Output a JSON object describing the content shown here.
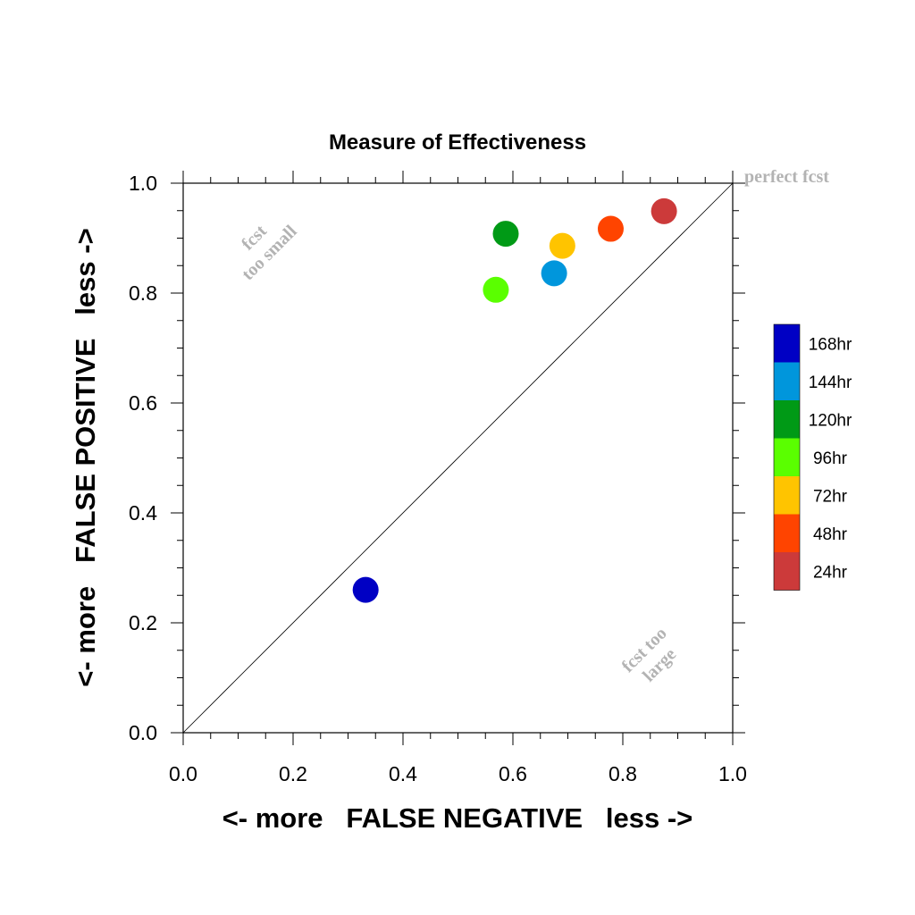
{
  "chart_data": {
    "type": "scatter",
    "title": "Measure of Effectiveness",
    "xlabel": "<- more   FALSE NEGATIVE   less ->",
    "ylabel": "<- more   FALSE POSITIVE   less ->",
    "xlim": [
      0.0,
      1.0
    ],
    "ylim": [
      0.0,
      1.0
    ],
    "xticks": [
      "0.0",
      "0.2",
      "0.4",
      "0.6",
      "0.8",
      "1.0"
    ],
    "yticks": [
      "0.0",
      "0.2",
      "0.4",
      "0.6",
      "0.8",
      "1.0"
    ],
    "grid": false,
    "reference_line": {
      "from": [
        0,
        0
      ],
      "to": [
        1,
        1
      ]
    },
    "annotations": {
      "perfect": "perfect fcst",
      "too_small_line1": "fcst",
      "too_small_line2": "too small",
      "too_large_line1": "fcst too",
      "too_large_line2": "large"
    },
    "legend_position": "right",
    "series": [
      {
        "name": "168hr",
        "color": "#0000C4",
        "x": 0.332,
        "y": 0.26
      },
      {
        "name": "144hr",
        "color": "#0096DC",
        "x": 0.675,
        "y": 0.836
      },
      {
        "name": "120hr",
        "color": "#009A16",
        "x": 0.587,
        "y": 0.908
      },
      {
        "name": "96hr",
        "color": "#5AFF00",
        "x": 0.569,
        "y": 0.806
      },
      {
        "name": "72hr",
        "color": "#FFC400",
        "x": 0.69,
        "y": 0.886
      },
      {
        "name": "48hr",
        "color": "#FF4400",
        "x": 0.778,
        "y": 0.917
      },
      {
        "name": "24hr",
        "color": "#CC3A3A",
        "x": 0.875,
        "y": 0.949
      }
    ]
  }
}
